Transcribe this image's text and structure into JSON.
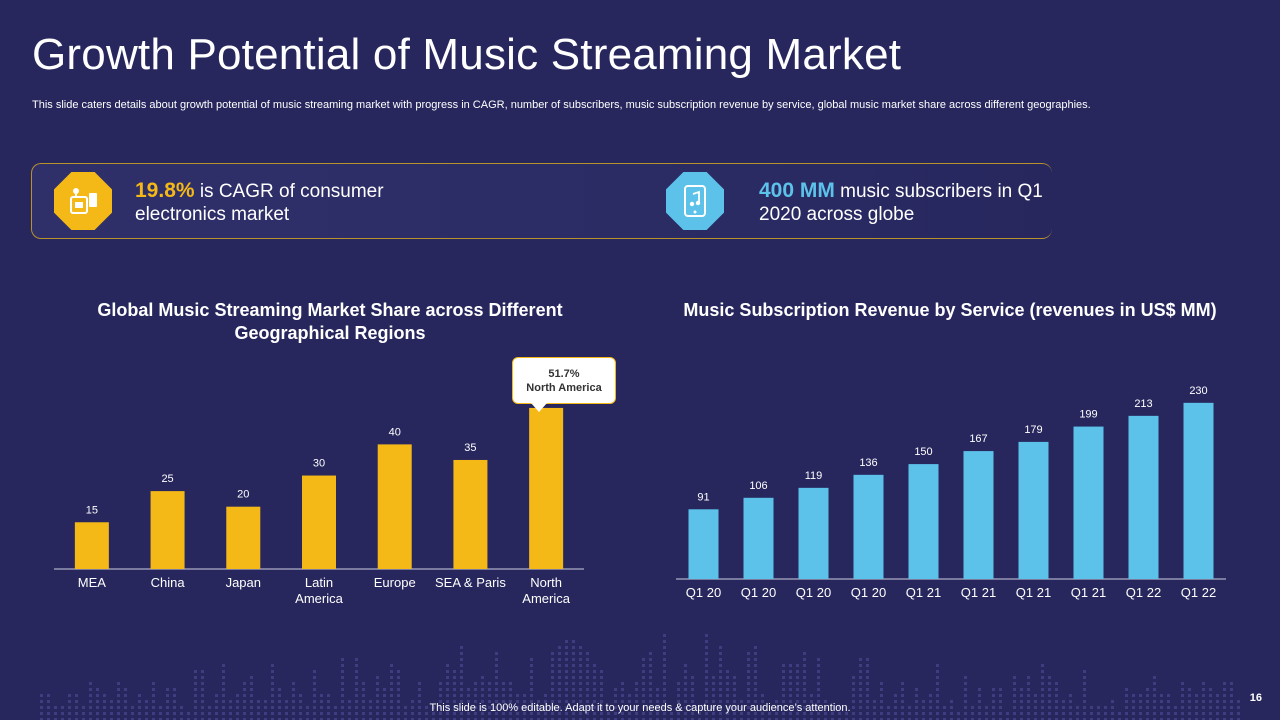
{
  "slide": {
    "title": "Growth Potential of Music Streaming Market",
    "subtitle": "This slide caters details about growth potential of music streaming market with progress in CAGR, number of subscribers, music subscription revenue by service, global music market share across different geographies.",
    "footer": "This slide is 100% editable. Adapt it to your needs & capture your audience’s attention.",
    "page_number": "16"
  },
  "stats": {
    "left": {
      "highlight": "19.8%",
      "text": " is CAGR of consumer electronics market",
      "icon": "electronics-icon"
    },
    "right": {
      "highlight": "400 MM",
      "text": " music subscribers in Q1 2020 across globe",
      "icon": "music-tablet-icon"
    }
  },
  "colors": {
    "background": "#27275e",
    "yellow": "#f4b916",
    "blue": "#5cc2ea"
  },
  "callout": {
    "value": "51.7%",
    "label": "North America"
  },
  "chart_data": [
    {
      "type": "bar",
      "title": "Global Music Streaming Market Share across Different Geographical Regions",
      "categories": [
        "MEA",
        "China",
        "Japan",
        "Latin America",
        "Europe",
        "SEA & Paris",
        "North America"
      ],
      "values": [
        15,
        25,
        20,
        30,
        40,
        35,
        51.7
      ],
      "labels": [
        "15",
        "25",
        "20",
        "30",
        "40",
        "35",
        ""
      ],
      "ylim": [
        0,
        52
      ],
      "color": "#f4b916",
      "xlabel": "",
      "ylabel": ""
    },
    {
      "type": "bar",
      "title": "Music Subscription Revenue by Service (revenues in US$ MM)",
      "categories": [
        "Q1 20",
        "Q1 20",
        "Q1 20",
        "Q1 20",
        "Q1 21",
        "Q1 21",
        "Q1 21",
        "Q1 21",
        "Q1 22",
        "Q1 22"
      ],
      "values": [
        91,
        106,
        119,
        136,
        150,
        167,
        179,
        199,
        213,
        230
      ],
      "ylim": [
        0,
        235
      ],
      "color": "#5cc2ea",
      "xlabel": "",
      "ylabel": ""
    }
  ]
}
